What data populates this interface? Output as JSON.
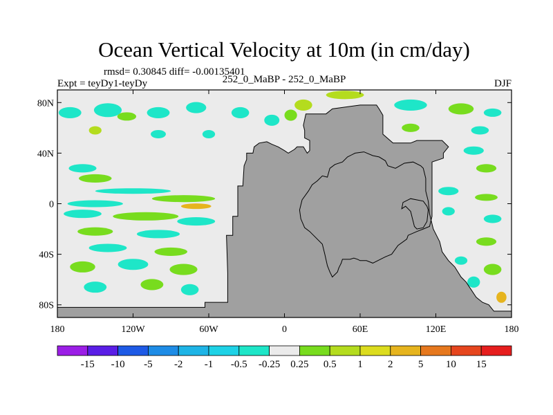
{
  "chart_data": {
    "type": "heatmap",
    "title": "Ocean Vertical Velocity at 10m (in cm/day)",
    "stats_text": "rmsd= 0.30845 diff= -0.00135401",
    "left_label": "Expt = teyDy1-teyDy",
    "center_label": "252_0_MaBP - 252_0_MaBP",
    "right_label": "DJF",
    "x_ticks": [
      {
        "value": -180,
        "label": "180"
      },
      {
        "value": -120,
        "label": "120W"
      },
      {
        "value": -60,
        "label": "60W"
      },
      {
        "value": 0,
        "label": "0"
      },
      {
        "value": 60,
        "label": "60E"
      },
      {
        "value": 120,
        "label": "120E"
      },
      {
        "value": 180,
        "label": "180"
      }
    ],
    "y_ticks": [
      {
        "value": 80,
        "label": "80N"
      },
      {
        "value": 40,
        "label": "40N"
      },
      {
        "value": 0,
        "label": "0"
      },
      {
        "value": -40,
        "label": "40S"
      },
      {
        "value": -80,
        "label": "80S"
      }
    ],
    "xlim": [
      -180,
      180
    ],
    "ylim": [
      -90,
      90
    ],
    "colorbar": {
      "labels": [
        "-15",
        "-10",
        "-5",
        "-2",
        "-1",
        "-0.5",
        "-0.25",
        "0.25",
        "0.5",
        "1",
        "2",
        "5",
        "10",
        "15"
      ],
      "colors": [
        "#9b1ee6",
        "#5a1ee6",
        "#1e5ae6",
        "#1e8ce6",
        "#1eb4e6",
        "#1ed2e6",
        "#1ee6c8",
        "#ebebeb",
        "#78dc1e",
        "#b4dc1e",
        "#dcdc1e",
        "#e6b41e",
        "#e6781e",
        "#e6461e",
        "#e61e1e"
      ]
    },
    "colors": {
      "land": "#a0a0a0",
      "near_zero": "#ebebeb"
    },
    "continents": [
      {
        "name": "pangaea",
        "points": [
          [
            -63,
            -82
          ],
          [
            -63,
            -78
          ],
          [
            -45,
            -78
          ],
          [
            -45,
            -55
          ],
          [
            -46,
            -25
          ],
          [
            -41,
            -25
          ],
          [
            -41,
            -10
          ],
          [
            -37,
            -10
          ],
          [
            -37,
            14
          ],
          [
            -33,
            14
          ],
          [
            -32,
            30
          ],
          [
            -30,
            35
          ],
          [
            -30,
            40
          ],
          [
            -25,
            40
          ],
          [
            -24,
            45
          ],
          [
            -20,
            48
          ],
          [
            -14,
            49
          ],
          [
            -10,
            47
          ],
          [
            -5,
            45
          ],
          [
            0,
            42
          ],
          [
            3,
            40
          ],
          [
            8,
            43
          ],
          [
            10,
            45
          ],
          [
            15,
            45
          ],
          [
            18,
            40
          ],
          [
            20,
            42
          ],
          [
            20,
            50
          ],
          [
            16,
            52
          ],
          [
            16,
            58
          ],
          [
            15,
            62
          ],
          [
            17,
            71
          ],
          [
            33,
            71
          ],
          [
            38,
            75
          ],
          [
            60,
            78
          ],
          [
            73,
            78
          ],
          [
            75,
            75
          ],
          [
            78,
            70
          ],
          [
            78,
            55
          ],
          [
            86,
            48
          ],
          [
            100,
            48
          ],
          [
            105,
            50
          ],
          [
            125,
            50
          ],
          [
            130,
            45
          ],
          [
            126,
            40
          ],
          [
            126,
            36
          ],
          [
            117,
            33
          ],
          [
            117,
            -10
          ],
          [
            115,
            -18
          ],
          [
            110,
            -20
          ],
          [
            105,
            -22
          ],
          [
            98,
            -25
          ],
          [
            97,
            -28
          ],
          [
            90,
            -33
          ],
          [
            85,
            -40
          ],
          [
            80,
            -42
          ],
          [
            70,
            -47
          ],
          [
            65,
            -45
          ],
          [
            60,
            -45
          ],
          [
            58,
            -44
          ],
          [
            55,
            -43
          ],
          [
            52,
            -44
          ],
          [
            46,
            -44
          ],
          [
            45,
            -47
          ],
          [
            43,
            -51
          ],
          [
            42,
            -54
          ],
          [
            40,
            -56
          ],
          [
            38,
            -58
          ],
          [
            36,
            -54
          ],
          [
            34,
            -49
          ],
          [
            32,
            -40
          ],
          [
            30,
            -32
          ],
          [
            20,
            -22
          ],
          [
            16,
            -19
          ],
          [
            13,
            -12
          ],
          [
            12,
            -5
          ],
          [
            14,
            3
          ],
          [
            19,
            10
          ],
          [
            22,
            15
          ],
          [
            26,
            18
          ],
          [
            30,
            22
          ],
          [
            34,
            21
          ],
          [
            36,
            28
          ],
          [
            40,
            31
          ],
          [
            46,
            33
          ],
          [
            50,
            37
          ],
          [
            56,
            40
          ],
          [
            63,
            41
          ],
          [
            70,
            38
          ],
          [
            75,
            37
          ],
          [
            80,
            34
          ],
          [
            82,
            30
          ],
          [
            88,
            28
          ],
          [
            95,
            32
          ],
          [
            102,
            33
          ],
          [
            108,
            30
          ],
          [
            110,
            28
          ],
          [
            112,
            20
          ],
          [
            112,
            10
          ],
          [
            114,
            2
          ],
          [
            115,
            -8
          ],
          [
            118,
            -20
          ],
          [
            123,
            -30
          ],
          [
            125,
            -38
          ],
          [
            130,
            -45
          ],
          [
            135,
            -50
          ],
          [
            140,
            -58
          ],
          [
            144,
            -62
          ],
          [
            148,
            -68
          ],
          [
            152,
            -74
          ],
          [
            157,
            -78
          ],
          [
            162,
            -80
          ],
          [
            166,
            -85
          ],
          [
            180,
            -85
          ],
          [
            180,
            -90
          ],
          [
            -180,
            -90
          ],
          [
            -180,
            -82
          ]
        ]
      },
      {
        "name": "east-peninsula",
        "points": [
          [
            93,
            -4
          ],
          [
            96,
            -2
          ],
          [
            100,
            -6
          ],
          [
            103,
            -18
          ],
          [
            105,
            -20
          ],
          [
            110,
            -19
          ],
          [
            113,
            -14
          ],
          [
            114,
            -5
          ],
          [
            113,
            -2
          ],
          [
            110,
            2
          ],
          [
            100,
            4
          ],
          [
            94,
            1
          ]
        ]
      }
    ],
    "anomaly_patches": [
      {
        "lon": -170,
        "lat": 72,
        "w": 18,
        "h": 4,
        "level": 6
      },
      {
        "lon": -140,
        "lat": 74,
        "w": 22,
        "h": 5,
        "level": 6
      },
      {
        "lon": -125,
        "lat": 69,
        "w": 15,
        "h": 3,
        "level": 8
      },
      {
        "lon": -100,
        "lat": 72,
        "w": 18,
        "h": 4,
        "level": 6
      },
      {
        "lon": -70,
        "lat": 76,
        "w": 16,
        "h": 4,
        "level": 6
      },
      {
        "lon": -35,
        "lat": 72,
        "w": 14,
        "h": 4,
        "level": 6
      },
      {
        "lon": -150,
        "lat": 58,
        "w": 10,
        "h": 3,
        "level": 9
      },
      {
        "lon": -100,
        "lat": 55,
        "w": 12,
        "h": 3,
        "level": 6
      },
      {
        "lon": -60,
        "lat": 55,
        "w": 10,
        "h": 3,
        "level": 6
      },
      {
        "lon": 5,
        "lat": 70,
        "w": 10,
        "h": 4,
        "level": 8
      },
      {
        "lon": -10,
        "lat": 66,
        "w": 12,
        "h": 4,
        "level": 6
      },
      {
        "lon": 15,
        "lat": 78,
        "w": 14,
        "h": 4,
        "level": 9
      },
      {
        "lon": 48,
        "lat": 86,
        "w": 30,
        "h": 3,
        "level": 9
      },
      {
        "lon": 100,
        "lat": 78,
        "w": 26,
        "h": 4,
        "level": 6
      },
      {
        "lon": 140,
        "lat": 75,
        "w": 20,
        "h": 4,
        "level": 8
      },
      {
        "lon": 165,
        "lat": 72,
        "w": 14,
        "h": 3,
        "level": 6
      },
      {
        "lon": 100,
        "lat": 60,
        "w": 14,
        "h": 3,
        "level": 8
      },
      {
        "lon": 155,
        "lat": 58,
        "w": 14,
        "h": 3,
        "level": 6
      },
      {
        "lon": 150,
        "lat": 42,
        "w": 16,
        "h": 3,
        "level": 6
      },
      {
        "lon": 160,
        "lat": 28,
        "w": 16,
        "h": 3,
        "level": 8
      },
      {
        "lon": -160,
        "lat": 28,
        "w": 22,
        "h": 3,
        "level": 6
      },
      {
        "lon": -150,
        "lat": 20,
        "w": 26,
        "h": 3,
        "level": 8
      },
      {
        "lon": -120,
        "lat": 10,
        "w": 60,
        "h": 2,
        "level": 6
      },
      {
        "lon": -80,
        "lat": 4,
        "w": 50,
        "h": 2.5,
        "level": 8
      },
      {
        "lon": -150,
        "lat": 0,
        "w": 44,
        "h": 2.5,
        "level": 6
      },
      {
        "lon": -70,
        "lat": -2,
        "w": 24,
        "h": 2,
        "level": 11
      },
      {
        "lon": -160,
        "lat": -8,
        "w": 30,
        "h": 3,
        "level": 6
      },
      {
        "lon": -110,
        "lat": -10,
        "w": 52,
        "h": 3,
        "level": 8
      },
      {
        "lon": -70,
        "lat": -14,
        "w": 30,
        "h": 3,
        "level": 6
      },
      {
        "lon": -150,
        "lat": -22,
        "w": 28,
        "h": 3,
        "level": 8
      },
      {
        "lon": -100,
        "lat": -24,
        "w": 34,
        "h": 3,
        "level": 6
      },
      {
        "lon": -140,
        "lat": -35,
        "w": 30,
        "h": 3,
        "level": 6
      },
      {
        "lon": -90,
        "lat": -38,
        "w": 26,
        "h": 3,
        "level": 8
      },
      {
        "lon": -160,
        "lat": -50,
        "w": 20,
        "h": 4,
        "level": 8
      },
      {
        "lon": -120,
        "lat": -48,
        "w": 24,
        "h": 4,
        "level": 6
      },
      {
        "lon": -80,
        "lat": -52,
        "w": 22,
        "h": 4,
        "level": 8
      },
      {
        "lon": -150,
        "lat": -66,
        "w": 18,
        "h": 4,
        "level": 6
      },
      {
        "lon": -105,
        "lat": -64,
        "w": 18,
        "h": 4,
        "level": 8
      },
      {
        "lon": -75,
        "lat": -68,
        "w": 14,
        "h": 4,
        "level": 6
      },
      {
        "lon": 40,
        "lat": 30,
        "w": 20,
        "h": 3,
        "level": 6
      },
      {
        "lon": 60,
        "lat": 22,
        "w": 30,
        "h": 2.5,
        "level": 8
      },
      {
        "lon": 90,
        "lat": 15,
        "w": 24,
        "h": 2.5,
        "level": 6
      },
      {
        "lon": 25,
        "lat": 2,
        "w": 14,
        "h": 2.5,
        "level": 8
      },
      {
        "lon": 55,
        "lat": 0,
        "w": 26,
        "h": 2.5,
        "level": 6
      },
      {
        "lon": 25,
        "lat": -12,
        "w": 10,
        "h": 2,
        "level": 5
      },
      {
        "lon": 60,
        "lat": -14,
        "w": 24,
        "h": 3,
        "level": 8
      },
      {
        "lon": 45,
        "lat": -24,
        "w": 16,
        "h": 3,
        "level": 6
      },
      {
        "lon": 78,
        "lat": -24,
        "w": 14,
        "h": 3,
        "level": 8
      },
      {
        "lon": 50,
        "lat": -36,
        "w": 20,
        "h": 3,
        "level": 6
      },
      {
        "lon": 82,
        "lat": -36,
        "w": 14,
        "h": 3,
        "level": 11
      },
      {
        "lon": 130,
        "lat": 10,
        "w": 16,
        "h": 3,
        "level": 6
      },
      {
        "lon": 160,
        "lat": 5,
        "w": 18,
        "h": 2.5,
        "level": 8
      },
      {
        "lon": 130,
        "lat": -6,
        "w": 10,
        "h": 3,
        "level": 6
      },
      {
        "lon": 165,
        "lat": -12,
        "w": 14,
        "h": 3,
        "level": 6
      },
      {
        "lon": 160,
        "lat": -30,
        "w": 16,
        "h": 3,
        "level": 8
      },
      {
        "lon": 140,
        "lat": -45,
        "w": 10,
        "h": 3,
        "level": 6
      },
      {
        "lon": 165,
        "lat": -52,
        "w": 14,
        "h": 4,
        "level": 8
      },
      {
        "lon": 150,
        "lat": -62,
        "w": 10,
        "h": 4,
        "level": 6
      },
      {
        "lon": 172,
        "lat": -74,
        "w": 8,
        "h": 4,
        "level": 11
      }
    ]
  }
}
